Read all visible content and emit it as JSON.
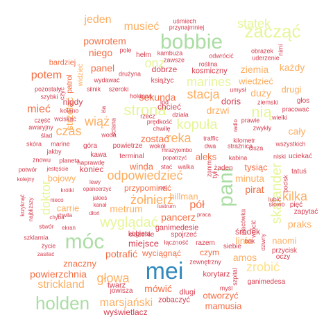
{
  "palette": {
    "red": "#d53e4f",
    "orange": "#f46d43",
    "light_orange": "#fdae61",
    "yellow": "#fee08b",
    "light_green": "#e6f598",
    "green": "#abdda4",
    "teal": "#66c2a5",
    "blue": "#3288bd"
  },
  "words": [
    {
      "text": "mei",
      "color": "blue",
      "size": 34
    },
    {
      "text": "bobbie",
      "color": "green",
      "size": 30
    },
    {
      "text": "holden",
      "color": "green",
      "size": 26
    },
    {
      "text": "móc",
      "color": "green",
      "size": 30
    },
    {
      "text": "pani",
      "color": "green",
      "size": 30
    },
    {
      "text": "zacząć",
      "color": "light_green",
      "size": 26
    },
    {
      "text": "strona",
      "color": "light_green",
      "size": 22
    },
    {
      "text": "skafander",
      "color": "light_green",
      "size": 20
    },
    {
      "text": "kopuła",
      "color": "light_green",
      "size": 20
    },
    {
      "text": "nią",
      "color": "light_green",
      "size": 22
    },
    {
      "text": "onz",
      "color": "light_green",
      "size": 18
    },
    {
      "text": "marines",
      "color": "light_green",
      "size": 18
    },
    {
      "text": "wyglądać",
      "color": "light_green",
      "size": 20
    },
    {
      "text": "doktor",
      "color": "light_green",
      "size": 18
    },
    {
      "text": "statek",
      "color": "light_green",
      "size": 18
    },
    {
      "text": "zrobić",
      "color": "yellow",
      "size": 18
    },
    {
      "text": "stacja",
      "color": "light_orange",
      "size": 18
    },
    {
      "text": "reka",
      "color": "light_orange",
      "size": 18
    },
    {
      "text": "wiąż",
      "color": "light_orange",
      "size": 18
    },
    {
      "text": "czas",
      "color": "light_orange",
      "size": 18
    },
    {
      "text": "odpowiedzieć",
      "color": "light_orange",
      "size": 18
    },
    {
      "text": "żołnierz",
      "color": "light_orange",
      "size": 18
    },
    {
      "text": "kilka",
      "color": "light_orange",
      "size": 18
    },
    {
      "text": "strickland",
      "color": "light_orange",
      "size": 16
    },
    {
      "text": "głowa",
      "color": "light_orange",
      "size": 18
    },
    {
      "text": "marsjański",
      "color": "light_orange",
      "size": 16
    },
    {
      "text": "potem",
      "color": "orange",
      "size": 16
    },
    {
      "text": "mieć",
      "color": "orange",
      "size": 16
    },
    {
      "text": "jeden",
      "color": "light_orange",
      "size": 16
    },
    {
      "text": "musieć",
      "color": "light_orange",
      "size": 16
    },
    {
      "text": "powrotem",
      "color": "orange",
      "size": 14
    },
    {
      "text": "niego",
      "color": "orange",
      "size": 14
    },
    {
      "text": "panel",
      "color": "orange",
      "size": 14
    },
    {
      "text": "ziemia",
      "color": "light_orange",
      "size": 14
    },
    {
      "text": "każdy",
      "color": "light_orange",
      "size": 14
    },
    {
      "text": "wiedzieć",
      "color": "light_orange",
      "size": 13
    },
    {
      "text": "duży",
      "color": "light_orange",
      "size": 14
    },
    {
      "text": "drugi",
      "color": "light_orange",
      "size": 13
    },
    {
      "text": "sekunda",
      "color": "orange",
      "size": 14
    },
    {
      "text": "strzelać",
      "color": "light_orange",
      "size": 14
    },
    {
      "text": "zostać",
      "color": "orange",
      "size": 14
    },
    {
      "text": "drzwi",
      "color": "light_orange",
      "size": 14
    },
    {
      "text": "doris",
      "color": "red",
      "size": 13
    },
    {
      "text": "cały",
      "color": "light_orange",
      "size": 14
    },
    {
      "text": "aleks",
      "color": "orange",
      "size": 13
    },
    {
      "text": "minuta",
      "color": "light_orange",
      "size": 14
    },
    {
      "text": "winda",
      "color": "orange",
      "size": 13
    },
    {
      "text": "metrum",
      "color": "light_orange",
      "size": 14
    },
    {
      "text": "carrie",
      "color": "light_orange",
      "size": 13
    },
    {
      "text": "bojowy",
      "color": "light_orange",
      "size": 13
    },
    {
      "text": "pancerz",
      "color": "orange",
      "size": 14
    },
    {
      "text": "pół",
      "color": "orange",
      "size": 16
    },
    {
      "text": "hillman",
      "color": "light_orange",
      "size": 13
    },
    {
      "text": "pirat",
      "color": "orange",
      "size": 14
    },
    {
      "text": "linia",
      "color": "light_orange",
      "size": 14
    },
    {
      "text": "naomi",
      "color": "light_orange",
      "size": 13
    },
    {
      "text": "praks",
      "color": "light_orange",
      "size": 14
    },
    {
      "text": "amos",
      "color": "light_orange",
      "size": 14
    },
    {
      "text": "potrafić",
      "color": "orange",
      "size": 14
    },
    {
      "text": "miejsce",
      "color": "red",
      "size": 13
    },
    {
      "text": "znaczny",
      "color": "orange",
      "size": 13
    },
    {
      "text": "powierzchnia",
      "color": "orange",
      "size": 14
    },
    {
      "text": "mówić",
      "color": "orange",
      "size": 14
    },
    {
      "text": "mamusia",
      "color": "orange",
      "size": 13
    },
    {
      "text": "otworzyć",
      "color": "orange",
      "size": 13
    },
    {
      "text": "tysiąc",
      "color": "orange",
      "size": 13
    },
    {
      "text": "koniec",
      "color": "red",
      "size": 12
    },
    {
      "text": "przypominać",
      "color": "orange",
      "size": 12
    },
    {
      "text": "ganimedesie",
      "color": "red",
      "size": 11
    },
    {
      "text": "czym",
      "color": "orange",
      "size": 12
    },
    {
      "text": "środek",
      "color": "red",
      "size": 12
    },
    {
      "text": "wyciągnąć",
      "color": "orange",
      "size": 12
    },
    {
      "text": "dobrze",
      "color": "red",
      "size": 12
    },
    {
      "text": "chcieć",
      "color": "red",
      "size": 12
    },
    {
      "text": "nigdy",
      "color": "red",
      "size": 12
    },
    {
      "text": "widzieć",
      "color": "light_orange",
      "size": 10
    },
    {
      "text": "patrol",
      "color": "orange",
      "size": 11
    },
    {
      "text": "bardziej",
      "color": "orange",
      "size": 11
    },
    {
      "text": "kosmiczny",
      "color": "red",
      "size": 11
    },
    {
      "text": "wyświetlacz",
      "color": "red",
      "size": 12
    },
    {
      "text": "zobaczyć",
      "color": "red",
      "size": 11
    },
    {
      "text": "dlugi",
      "color": "red",
      "size": 11
    },
    {
      "text": "ganimedesa",
      "color": "red",
      "size": 10
    },
    {
      "text": "korytarz",
      "color": "red",
      "size": 11
    },
    {
      "text": "twarz",
      "color": "red",
      "size": 11
    },
    {
      "text": "jowisza",
      "color": "red",
      "size": 10
    },
    {
      "text": "kobieta",
      "color": "red",
      "size": 10
    },
    {
      "text": "ciążenie",
      "color": "red",
      "size": 10
    },
    {
      "text": "spojrzeć",
      "color": "red",
      "size": 10
    },
    {
      "text": "łączność",
      "color": "red",
      "size": 9
    },
    {
      "text": "razem",
      "color": "red",
      "size": 10
    },
    {
      "text": "zewnętrzny",
      "color": "red",
      "size": 9
    },
    {
      "text": "myśl",
      "color": "red",
      "size": 9
    },
    {
      "text": "szpital",
      "color": "red",
      "size": 9
    },
    {
      "text": "przycisk",
      "color": "red",
      "size": 10
    },
    {
      "text": "oczy",
      "color": "red",
      "size": 10
    },
    {
      "text": "siebie",
      "color": "red",
      "size": 10
    },
    {
      "text": "bok",
      "color": "red",
      "size": 9
    },
    {
      "text": "wrócić",
      "color": "red",
      "size": 9
    },
    {
      "text": "dziwny",
      "color": "red",
      "size": 8
    },
    {
      "text": "zapytać",
      "color": "red",
      "size": 10
    },
    {
      "text": "pięć",
      "color": "red",
      "size": 10
    },
    {
      "text": "tatuś",
      "color": "red",
      "size": 10
    },
    {
      "text": "uciekać",
      "color": "red",
      "size": 10
    },
    {
      "text": "pocisk",
      "color": "red",
      "size": 9
    },
    {
      "text": "lubić",
      "color": "red",
      "size": 9
    },
    {
      "text": "słowo",
      "color": "red",
      "size": 9
    },
    {
      "text": "placówka",
      "color": "red",
      "size": 9
    },
    {
      "text": "żaden",
      "color": "red",
      "size": 10
    },
    {
      "text": "kabina",
      "color": "red",
      "size": 9
    },
    {
      "text": "niski",
      "color": "red",
      "size": 9
    },
    {
      "text": "cisza",
      "color": "red",
      "size": 9
    },
    {
      "text": "wszystkich",
      "color": "red",
      "size": 9
    },
    {
      "text": "strażnica",
      "color": "red",
      "size": 9
    },
    {
      "text": "kilometr",
      "color": "red",
      "size": 9
    },
    {
      "text": "zwykły",
      "color": "red",
      "size": 9
    },
    {
      "text": "wielki",
      "color": "red",
      "size": 9
    },
    {
      "text": "pracować",
      "color": "red",
      "size": 9
    },
    {
      "text": "głos",
      "color": "red",
      "size": 10
    },
    {
      "text": "ziemski",
      "color": "red",
      "size": 9
    },
    {
      "text": "umysł",
      "color": "red",
      "size": 9
    },
    {
      "text": "prawie",
      "color": "red",
      "size": 9
    },
    {
      "text": "radio",
      "color": "red",
      "size": 8
    },
    {
      "text": "traffic",
      "color": "red",
      "size": 9
    },
    {
      "text": "dwa",
      "color": "red",
      "size": 9
    },
    {
      "text": "zanim",
      "color": "red",
      "size": 9
    },
    {
      "text": "tył",
      "color": "red",
      "size": 10
    },
    {
      "text": "uśmiech",
      "color": "red",
      "size": 9
    },
    {
      "text": "przynajmniej",
      "color": "red",
      "size": 9
    },
    {
      "text": "pole",
      "color": "red",
      "size": 9
    },
    {
      "text": "hełm",
      "color": "red",
      "size": 10
    },
    {
      "text": "kambuza",
      "color": "red",
      "size": 9
    },
    {
      "text": "zawsze",
      "color": "red",
      "size": 9
    },
    {
      "text": "obrazek",
      "color": "red",
      "size": 9
    },
    {
      "text": "odwrócić",
      "color": "red",
      "size": 9
    },
    {
      "text": "uderzenie",
      "color": "red",
      "size": 9
    },
    {
      "text": "roślina",
      "color": "red",
      "size": 9
    },
    {
      "text": "nimi",
      "color": "red",
      "size": 9
    },
    {
      "text": "drużyna",
      "color": "red",
      "size": 9
    },
    {
      "text": "książyc",
      "color": "red",
      "size": 10
    },
    {
      "text": "wydawać",
      "color": "red",
      "size": 9
    },
    {
      "text": "silnik",
      "color": "red",
      "size": 9
    },
    {
      "text": "szeroki",
      "color": "red",
      "size": 9
    },
    {
      "text": "holdena",
      "color": "red",
      "size": 9
    },
    {
      "text": "pozostały",
      "color": "red",
      "size": 9
    },
    {
      "text": "szybki",
      "color": "red",
      "size": 9
    },
    {
      "text": "najbliższy",
      "color": "red",
      "size": 8
    },
    {
      "text": "czyć",
      "color": "red",
      "size": 9
    },
    {
      "text": "część",
      "color": "red",
      "size": 9
    },
    {
      "text": "wciskać",
      "color": "red",
      "size": 9
    },
    {
      "text": "kolano",
      "color": "red",
      "size": 9
    },
    {
      "text": "awaryjny",
      "color": "red",
      "size": 9
    },
    {
      "text": "ślad",
      "color": "red",
      "size": 9
    },
    {
      "text": "skóra",
      "color": "red",
      "size": 9
    },
    {
      "text": "marine",
      "color": "red",
      "size": 9
    },
    {
      "text": "znowu",
      "color": "red",
      "size": 9
    },
    {
      "text": "planeta",
      "color": "red",
      "size": 9
    },
    {
      "text": "naprawdę",
      "color": "red",
      "size": 9
    },
    {
      "text": "jakby",
      "color": "red",
      "size": 9
    },
    {
      "text": "kawa",
      "color": "red",
      "size": 10
    },
    {
      "text": "góra",
      "color": "red",
      "size": 10
    },
    {
      "text": "powietrze",
      "color": "red",
      "size": 10
    },
    {
      "text": "wokół",
      "color": "red",
      "size": 9
    },
    {
      "text": "terminal",
      "color": "red",
      "size": 10
    },
    {
      "text": "mrazyjombo",
      "color": "red",
      "size": 8
    },
    {
      "text": "popatrzyć",
      "color": "red",
      "size": 8
    },
    {
      "text": "stać",
      "color": "red",
      "size": 9
    },
    {
      "text": "walka",
      "color": "red",
      "size": 9
    },
    {
      "text": "woda",
      "color": "red",
      "size": 9
    },
    {
      "text": "chwilę",
      "color": "red",
      "size": 9
    },
    {
      "text": "prędkość",
      "color": "red",
      "size": 9
    },
    {
      "text": "rzecz",
      "color": "red",
      "size": 9
    },
    {
      "text": "lod",
      "color": "red",
      "size": 9
    },
    {
      "text": "działa",
      "color": "red",
      "size": 9
    },
    {
      "text": "ściana",
      "color": "red",
      "size": 9
    },
    {
      "text": "iśa",
      "color": "red",
      "size": 8
    },
    {
      "text": "potwór",
      "color": "red",
      "size": 9
    },
    {
      "text": "jestęście",
      "color": "red",
      "size": 8
    },
    {
      "text": "kolejny",
      "color": "red",
      "size": 8
    },
    {
      "text": "krzyknąć",
      "color": "red",
      "size": 8
    },
    {
      "text": "lewy",
      "color": "red",
      "size": 8
    },
    {
      "text": "krótki",
      "color": "red",
      "size": 8
    },
    {
      "text": "opancerzyć",
      "color": "red",
      "size": 8
    },
    {
      "text": "nieco",
      "color": "red",
      "size": 8
    },
    {
      "text": "jakieś",
      "color": "red",
      "size": 8
    },
    {
      "text": "kanał",
      "color": "red",
      "size": 8
    },
    {
      "text": "chwila",
      "color": "red",
      "size": 8
    },
    {
      "text": "chyba",
      "color": "red",
      "size": 8
    },
    {
      "text": "dłoń",
      "color": "red",
      "size": 8
    },
    {
      "text": "stwór",
      "color": "red",
      "size": 9
    },
    {
      "text": "ekran",
      "color": "red",
      "size": 8
    },
    {
      "text": "szklarnia",
      "color": "red",
      "size": 9
    },
    {
      "text": "życie",
      "color": "red",
      "size": 9
    },
    {
      "text": "zasilać",
      "color": "red",
      "size": 8
    },
    {
      "text": "cel",
      "color": "red",
      "size": 8
    },
    {
      "text": "lustrum",
      "color": "red",
      "size": 8
    },
    {
      "text": "praca",
      "color": "red",
      "size": 8
    }
  ]
}
